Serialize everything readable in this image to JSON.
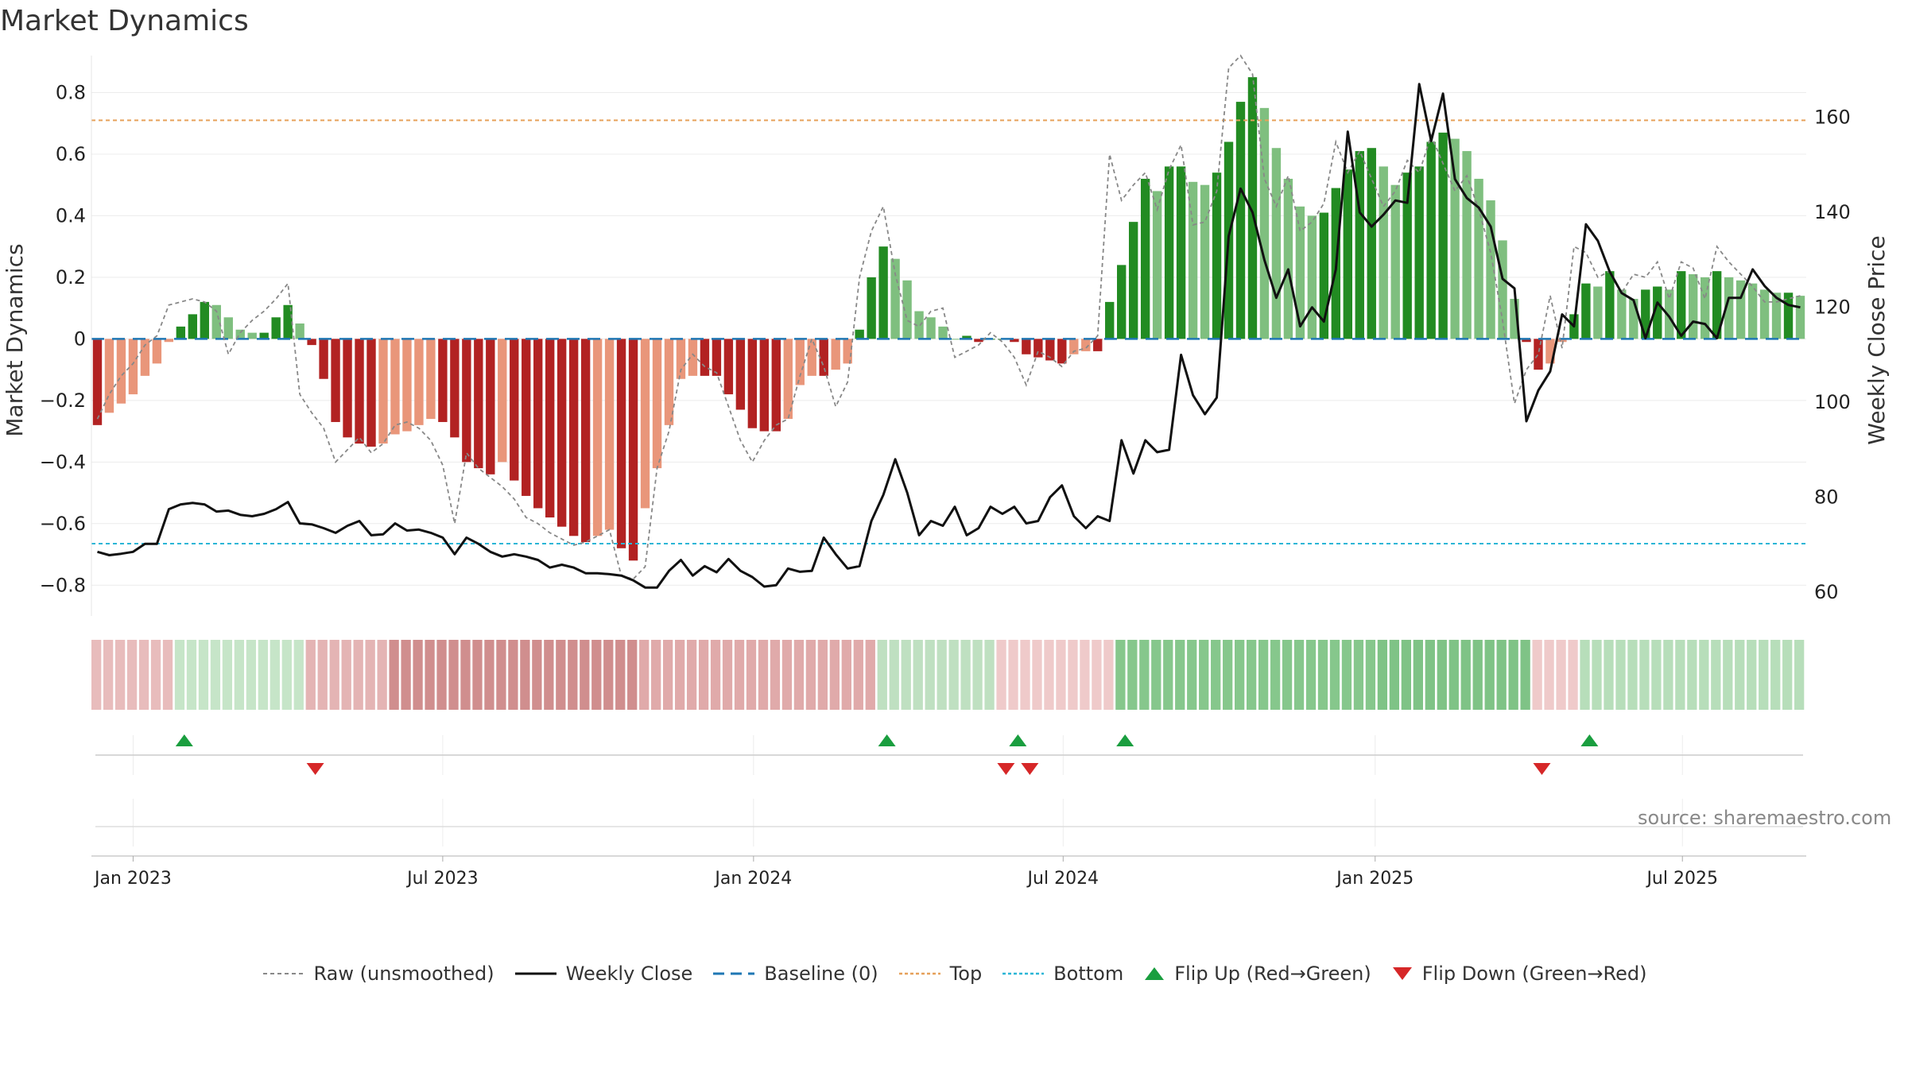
{
  "title": "Market Dynamics",
  "source": "source: sharemaestro.com",
  "legend": [
    {
      "key": "raw",
      "label": "Raw (unsmoothed)"
    },
    {
      "key": "close",
      "label": "Weekly Close"
    },
    {
      "key": "baseline",
      "label": "Baseline (0)"
    },
    {
      "key": "top",
      "label": "Top"
    },
    {
      "key": "bottom",
      "label": "Bottom"
    },
    {
      "key": "flipup",
      "label": "Flip Up (Red→Green)"
    },
    {
      "key": "flipdown",
      "label": "Flip Down (Green→Red)"
    }
  ],
  "colors": {
    "strong_green": "#228B22",
    "light_green": "#7FBF7F",
    "strong_red": "#B22222",
    "light_red": "#E9967A",
    "close": "#111111",
    "raw": "#888888",
    "baseline": "#1f77b4",
    "top": "#e6a15a",
    "bottom": "#2bb6d6",
    "flip_up": "#1a9e3f",
    "flip_down": "#d62728"
  },
  "chart_data": {
    "type": "bar",
    "title": "Market Dynamics",
    "ylabel_left": "Market Dynamics",
    "ylabel_right": "Weekly Close Price",
    "ylim_left": [
      -0.9,
      0.92
    ],
    "ylim_right": [
      55,
      173
    ],
    "yticks_left": [
      "0.8",
      "0.6",
      "0.4",
      "0.2",
      "0",
      "−0.2",
      "−0.4",
      "−0.6",
      "−0.8"
    ],
    "yticks_left_values": [
      0.8,
      0.6,
      0.4,
      0.2,
      0,
      -0.2,
      -0.4,
      -0.6,
      -0.8
    ],
    "yticks_right": [
      "160",
      "140",
      "120",
      "100",
      "80",
      "60"
    ],
    "yticks_right_values": [
      160,
      140,
      120,
      100,
      80,
      60
    ],
    "xticks": [
      "Jan 2023",
      "Jul 2023",
      "Jan 2024",
      "Jul 2024",
      "Jan 2025",
      "Jul 2025"
    ],
    "xtick_weeks": [
      3.0,
      29.0,
      55.1,
      81.1,
      107.3,
      133.1
    ],
    "top_level": 0.71,
    "bottom_level": -0.665,
    "baseline": 0,
    "grid": true,
    "legend_position": "bottom-center",
    "weeks": 144,
    "series": [
      {
        "name": "Market Dynamics",
        "values": [
          -0.28,
          -0.24,
          -0.21,
          -0.18,
          -0.12,
          -0.08,
          -0.01,
          0.04,
          0.08,
          0.12,
          0.11,
          0.07,
          0.03,
          0.02,
          0.02,
          0.07,
          0.11,
          0.05,
          -0.02,
          -0.13,
          -0.27,
          -0.32,
          -0.34,
          -0.35,
          -0.34,
          -0.31,
          -0.3,
          -0.28,
          -0.26,
          -0.27,
          -0.32,
          -0.4,
          -0.42,
          -0.44,
          -0.4,
          -0.46,
          -0.51,
          -0.55,
          -0.58,
          -0.61,
          -0.64,
          -0.66,
          -0.64,
          -0.62,
          -0.68,
          -0.72,
          -0.55,
          -0.42,
          -0.28,
          -0.13,
          -0.12,
          -0.12,
          -0.12,
          -0.18,
          -0.23,
          -0.29,
          -0.3,
          -0.3,
          -0.26,
          -0.15,
          -0.12,
          -0.12,
          -0.1,
          -0.08,
          0.03,
          0.2,
          0.3,
          0.26,
          0.19,
          0.09,
          0.07,
          0.04,
          0.0,
          0.01,
          -0.01,
          0.0,
          0.0,
          -0.01,
          -0.05,
          -0.06,
          -0.07,
          -0.08,
          -0.05,
          -0.04,
          -0.04,
          0.12,
          0.24,
          0.38,
          0.52,
          0.48,
          0.56,
          0.56,
          0.51,
          0.5,
          0.54,
          0.64,
          0.77,
          0.85,
          0.75,
          0.62,
          0.52,
          0.43,
          0.4,
          0.41,
          0.49,
          0.55,
          0.61,
          0.62,
          0.56,
          0.5,
          0.54,
          0.56,
          0.64,
          0.67,
          0.65,
          0.61,
          0.52,
          0.45,
          0.32,
          0.13,
          -0.01,
          -0.1,
          -0.08,
          -0.01,
          0.08,
          0.18,
          0.17,
          0.22,
          0.16,
          0.13,
          0.16,
          0.17,
          0.16,
          0.22,
          0.21,
          0.2,
          0.22,
          0.2,
          0.19,
          0.18,
          0.16,
          0.15,
          0.15,
          0.14
        ]
      },
      {
        "name": "Raw (unsmoothed)",
        "values": [
          -0.26,
          -0.18,
          -0.12,
          -0.08,
          -0.02,
          0.01,
          0.11,
          0.12,
          0.13,
          0.12,
          0.09,
          -0.05,
          0.02,
          0.06,
          0.09,
          0.13,
          0.18,
          -0.18,
          -0.24,
          -0.29,
          -0.4,
          -0.36,
          -0.32,
          -0.37,
          -0.34,
          -0.28,
          -0.27,
          -0.29,
          -0.33,
          -0.41,
          -0.6,
          -0.37,
          -0.42,
          -0.45,
          -0.48,
          -0.52,
          -0.58,
          -0.6,
          -0.63,
          -0.65,
          -0.67,
          -0.66,
          -0.64,
          -0.62,
          -0.77,
          -0.78,
          -0.74,
          -0.42,
          -0.3,
          -0.1,
          -0.05,
          -0.09,
          -0.11,
          -0.22,
          -0.33,
          -0.4,
          -0.33,
          -0.28,
          -0.26,
          -0.12,
          0.0,
          -0.09,
          -0.22,
          -0.14,
          0.2,
          0.35,
          0.43,
          0.21,
          0.06,
          0.04,
          0.09,
          0.1,
          -0.06,
          -0.04,
          -0.02,
          0.02,
          -0.01,
          -0.06,
          -0.15,
          -0.04,
          -0.06,
          -0.09,
          -0.04,
          -0.03,
          0.01,
          0.6,
          0.45,
          0.5,
          0.54,
          0.42,
          0.55,
          0.63,
          0.37,
          0.38,
          0.48,
          0.88,
          0.92,
          0.86,
          0.52,
          0.43,
          0.53,
          0.35,
          0.38,
          0.44,
          0.64,
          0.54,
          0.61,
          0.52,
          0.43,
          0.48,
          0.58,
          0.54,
          0.66,
          0.57,
          0.48,
          0.53,
          0.42,
          0.28,
          0.06,
          -0.21,
          -0.1,
          -0.05,
          0.14,
          -0.03,
          0.3,
          0.28,
          0.2,
          0.22,
          0.15,
          0.21,
          0.2,
          0.25,
          0.13,
          0.25,
          0.23,
          0.13,
          0.3,
          0.25,
          0.21,
          0.17,
          0.12,
          0.12,
          0.13,
          0.14
        ]
      },
      {
        "name": "Weekly Close",
        "values": [
          68.5,
          67.8,
          68.1,
          68.5,
          70.2,
          70.2,
          77.5,
          78.5,
          78.8,
          78.5,
          77.0,
          77.2,
          76.3,
          76.0,
          76.5,
          77.5,
          79.0,
          74.5,
          74.3,
          73.5,
          72.5,
          74.0,
          75.0,
          72.0,
          72.2,
          74.5,
          73.0,
          73.2,
          72.5,
          71.5,
          68.0,
          71.5,
          70.2,
          68.5,
          67.5,
          68.0,
          67.5,
          66.8,
          65.2,
          65.8,
          65.2,
          64.0,
          64.0,
          63.8,
          63.5,
          62.5,
          61.0,
          61.0,
          64.5,
          66.8,
          63.5,
          65.5,
          64.2,
          67.0,
          64.5,
          63.2,
          61.2,
          61.5,
          65.0,
          64.3,
          64.5,
          71.5,
          68.0,
          65.0,
          65.5,
          75.0,
          80.5,
          88.0,
          81.0,
          72.0,
          75.0,
          74.0,
          78.0,
          72.0,
          73.5,
          78.0,
          76.5,
          78.0,
          74.5,
          75.0,
          80.0,
          82.5,
          76.0,
          73.5,
          76.0,
          75.0,
          92.0,
          85.0,
          92.0,
          89.5,
          90.0,
          110.0,
          101.5,
          97.5,
          101.0,
          135.0,
          145.0,
          140.0,
          130.0,
          122.0,
          128.0,
          116.0,
          120.0,
          117.0,
          128.0,
          157.0,
          140.0,
          137.0,
          139.5,
          142.5,
          142.0,
          167.0,
          155.0,
          165.0,
          147.0,
          143.0,
          141.0,
          137.0,
          126.0,
          124.0,
          96.0,
          102.5,
          106.5,
          118.5,
          116.0,
          137.5,
          134.0,
          127.5,
          123.0,
          121.5,
          113.5,
          121.0,
          118.0,
          114.0,
          117.0,
          116.5,
          113.5,
          122.0,
          122.0,
          128.0,
          124.5,
          122.0,
          120.5,
          120.0
        ]
      }
    ],
    "regime_strip": [
      {
        "from": 0,
        "to": 7,
        "color": "#e8bcbc"
      },
      {
        "from": 7,
        "to": 18,
        "color": "#c6e5c8"
      },
      {
        "from": 18,
        "to": 25,
        "color": "#e4b4b4"
      },
      {
        "from": 25,
        "to": 46,
        "color": "#d08e8e"
      },
      {
        "from": 46,
        "to": 66,
        "color": "#e0aaaa"
      },
      {
        "from": 66,
        "to": 76,
        "color": "#bfe0c1"
      },
      {
        "from": 76,
        "to": 86,
        "color": "#efcaca"
      },
      {
        "from": 86,
        "to": 108,
        "color": "#86c78c"
      },
      {
        "from": 108,
        "to": 121,
        "color": "#7fc386"
      },
      {
        "from": 121,
        "to": 125,
        "color": "#efcaca"
      },
      {
        "from": 125,
        "to": 144,
        "color": "#b7deba"
      }
    ],
    "flip_up_weeks": [
      7.3,
      66.3,
      77.3,
      86.3,
      125.3
    ],
    "flip_down_weeks": [
      18.3,
      76.3,
      78.3,
      121.3
    ]
  }
}
